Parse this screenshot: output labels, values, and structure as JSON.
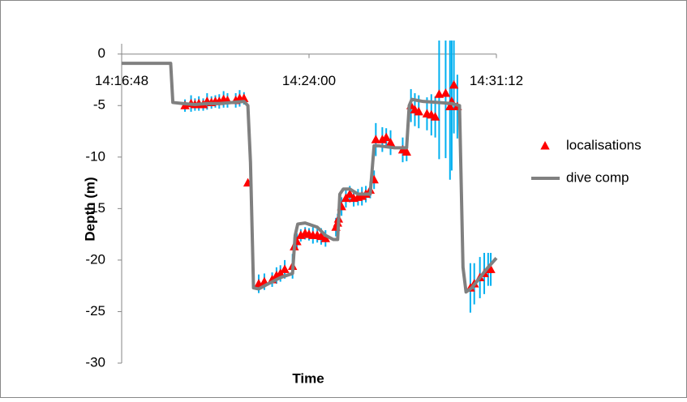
{
  "chart_data": {
    "type": "scatter",
    "x_label": "Time",
    "y_label": "Depth (m)",
    "xlim": [
      51408,
      52272
    ],
    "ylim": [
      -30,
      1
    ],
    "xticks": [
      {
        "value": 51408,
        "label": "14:16:48"
      },
      {
        "value": 51840,
        "label": "14:24:00"
      },
      {
        "value": 52272,
        "label": "14:31:12"
      }
    ],
    "yticks": [
      0,
      -5,
      -10,
      -15,
      -20,
      -25,
      -30
    ],
    "grid": false,
    "legend": "right",
    "series": [
      {
        "name": "localisations",
        "marker": "triangle",
        "color": "#ff0000",
        "error_color": "#00b0f0",
        "x": [
          51554,
          51568,
          51577,
          51586,
          51596,
          51605,
          51615,
          51624,
          51633,
          51643,
          51652,
          51671,
          51680,
          51690,
          51699,
          51724,
          51737,
          51755,
          51765,
          51774,
          51784,
          51802,
          51806,
          51812,
          51821,
          51831,
          51840,
          51849,
          51859,
          51868,
          51878,
          51902,
          51906,
          51908,
          51915,
          51925,
          51934,
          51943,
          51953,
          51962,
          51971,
          51981,
          51990,
          51994,
          52009,
          52018,
          52028,
          52056,
          52065,
          52075,
          52084,
          52093,
          52112,
          52122,
          52131,
          52140,
          52155,
          52165,
          52169,
          52174,
          52182,
          52212,
          52221,
          52234,
          52244,
          52253,
          52259
        ],
        "values": [
          -5.0,
          -4.8,
          -4.9,
          -4.8,
          -4.9,
          -4.6,
          -4.7,
          -4.6,
          -4.6,
          -4.4,
          -4.5,
          -4.5,
          -4.3,
          -4.3,
          -12.5,
          -22.3,
          -22.1,
          -21.9,
          -21.5,
          -21.3,
          -20.9,
          -20.6,
          -18.7,
          -18.2,
          -17.6,
          -17.4,
          -17.5,
          -17.6,
          -17.6,
          -17.7,
          -17.9,
          -16.8,
          -16.4,
          -16.0,
          -14.8,
          -14.0,
          -13.6,
          -14.0,
          -13.9,
          -13.8,
          -13.6,
          -13.2,
          -12.2,
          -8.3,
          -8.3,
          -8.1,
          -8.6,
          -9.3,
          -9.5,
          -5.0,
          -5.4,
          -5.6,
          -5.8,
          -5.9,
          -6.1,
          -3.9,
          -3.8,
          -5.1,
          -4.6,
          -3.0,
          -5.1,
          -22.7,
          -22.3,
          -21.7,
          -21.3,
          -20.9,
          -20.9
        ],
        "errors": [
          0.6,
          0.8,
          0.6,
          0.7,
          0.6,
          0.8,
          0.6,
          0.6,
          0.7,
          0.8,
          0.7,
          0.7,
          0.8,
          0.6,
          0,
          0.9,
          0.8,
          0.7,
          0.8,
          0.8,
          0.9,
          1.2,
          0.9,
          0.8,
          0.6,
          0.6,
          0.6,
          0.8,
          0.7,
          0.8,
          0.8,
          0.9,
          0.9,
          0.8,
          0.9,
          0.9,
          0.8,
          0.8,
          0.8,
          0.9,
          0.8,
          0.8,
          0.9,
          1.6,
          1.2,
          0.9,
          1.2,
          1.2,
          0.9,
          1.6,
          1.6,
          1.6,
          1.6,
          2.0,
          2.0,
          6.3,
          6.3,
          7.1,
          6.7,
          4.7,
          3.1,
          2.4,
          2.0,
          2.0,
          2.0,
          1.6,
          1.6
        ]
      },
      {
        "name": "dive comp",
        "marker": "line",
        "color": "#808080",
        "x": [
          51408,
          51521,
          51526,
          51549,
          51577,
          51605,
          51633,
          51662,
          51690,
          51699,
          51705,
          51712,
          51724,
          51746,
          51774,
          51802,
          51808,
          51814,
          51831,
          51859,
          51878,
          51896,
          51906,
          51911,
          51919,
          51934,
          51953,
          51981,
          51990,
          52000,
          52037,
          52065,
          52071,
          52077,
          52103,
          52140,
          52169,
          52187,
          52195,
          52202,
          52215,
          52234,
          52253,
          52272
        ],
        "values": [
          -0.9,
          -0.9,
          -4.7,
          -4.8,
          -4.9,
          -4.8,
          -4.8,
          -4.7,
          -4.6,
          -5.0,
          -10.5,
          -22.7,
          -22.8,
          -22.3,
          -21.7,
          -21.3,
          -17.6,
          -16.5,
          -16.4,
          -16.8,
          -17.6,
          -18.0,
          -18.0,
          -13.6,
          -13.1,
          -13.1,
          -13.6,
          -13.6,
          -8.9,
          -8.9,
          -9.1,
          -9.1,
          -5.0,
          -4.4,
          -4.6,
          -4.7,
          -4.8,
          -5.0,
          -20.7,
          -23.1,
          -22.7,
          -21.7,
          -20.7,
          -19.8
        ]
      }
    ]
  }
}
